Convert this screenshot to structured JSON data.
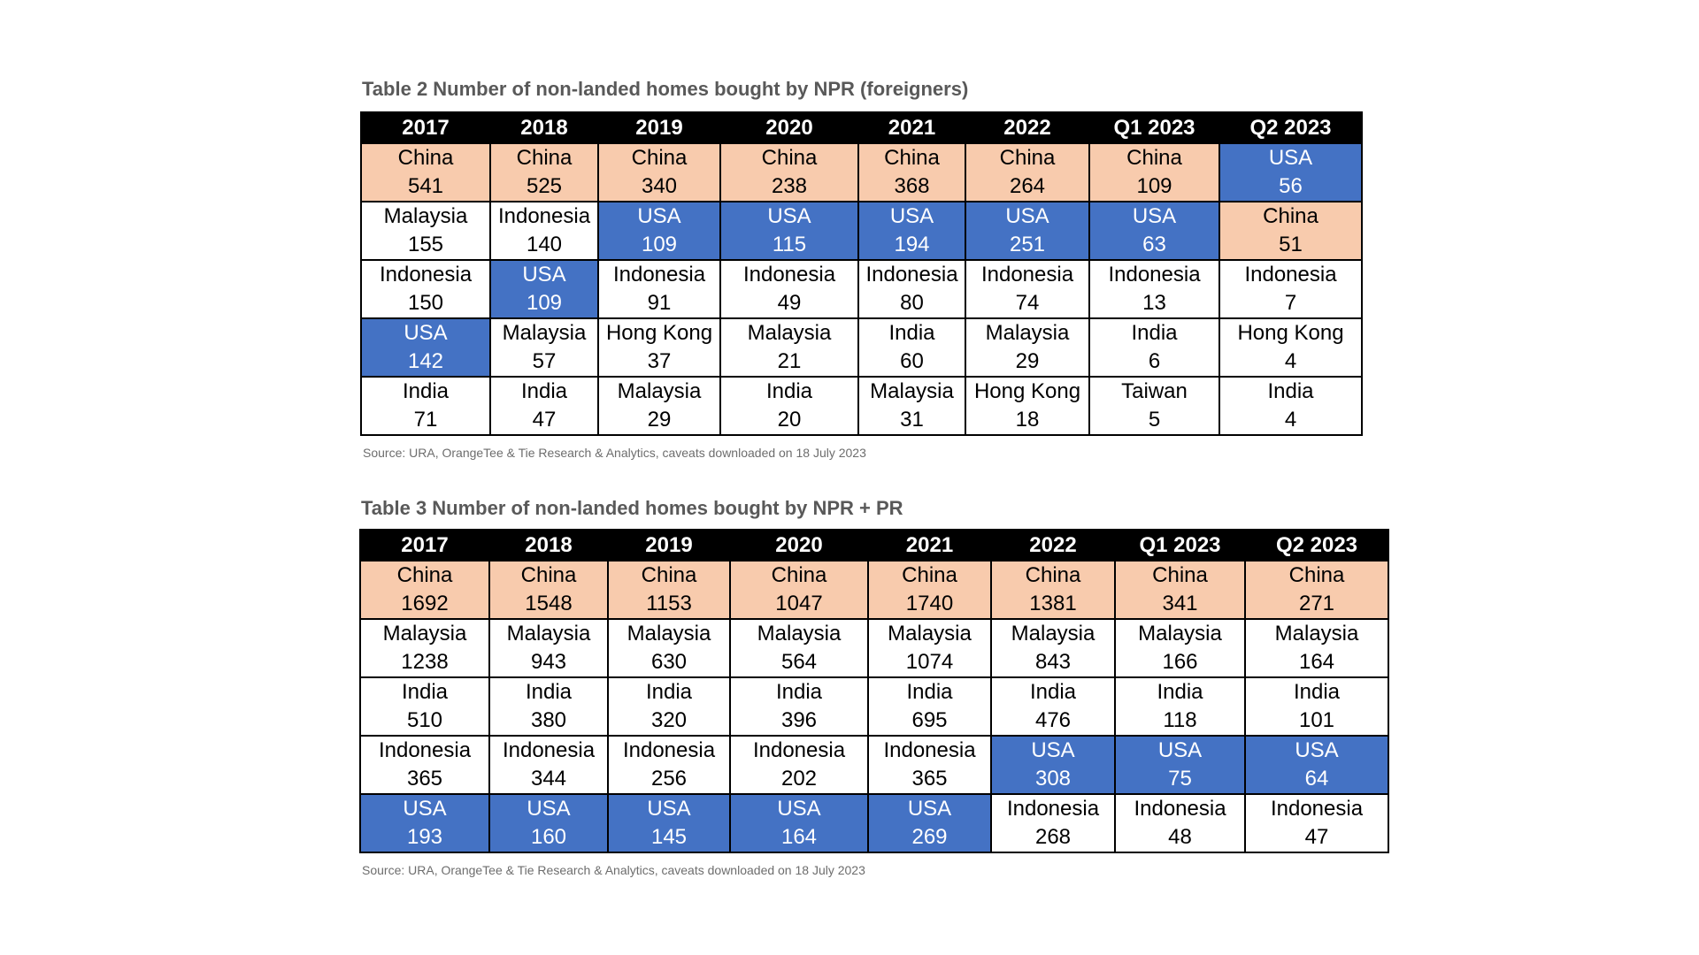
{
  "colors": {
    "china_fill": "#f8cbad",
    "usa_fill": "#4472c4",
    "header_fill": "#000000",
    "title_text": "#595959",
    "source_text": "#6d6d6d"
  },
  "tables": [
    {
      "title": "Table 2 Number of non-landed homes bought by NPR (foreigners)",
      "source": "Source: URA, OrangeTee & Tie Research & Analytics, caveats downloaded on 18 July 2023",
      "columns": [
        "2017",
        "2018",
        "2019",
        "2020",
        "2021",
        "2022",
        "Q1 2023",
        "Q2 2023"
      ],
      "rows": [
        [
          {
            "country": "China",
            "count": "541"
          },
          {
            "country": "China",
            "count": "525"
          },
          {
            "country": "China",
            "count": "340"
          },
          {
            "country": "China",
            "count": "238"
          },
          {
            "country": "China",
            "count": "368"
          },
          {
            "country": "China",
            "count": "264"
          },
          {
            "country": "China",
            "count": "109"
          },
          {
            "country": "USA",
            "count": "56"
          }
        ],
        [
          {
            "country": "Malaysia",
            "count": "155"
          },
          {
            "country": "Indonesia",
            "count": "140"
          },
          {
            "country": "USA",
            "count": "109"
          },
          {
            "country": "USA",
            "count": "115"
          },
          {
            "country": "USA",
            "count": "194"
          },
          {
            "country": "USA",
            "count": "251"
          },
          {
            "country": "USA",
            "count": "63"
          },
          {
            "country": "China",
            "count": "51"
          }
        ],
        [
          {
            "country": "Indonesia",
            "count": "150"
          },
          {
            "country": "USA",
            "count": "109"
          },
          {
            "country": "Indonesia",
            "count": "91"
          },
          {
            "country": "Indonesia",
            "count": "49"
          },
          {
            "country": "Indonesia",
            "count": "80"
          },
          {
            "country": "Indonesia",
            "count": "74"
          },
          {
            "country": "Indonesia",
            "count": "13"
          },
          {
            "country": "Indonesia",
            "count": "7"
          }
        ],
        [
          {
            "country": "USA",
            "count": "142"
          },
          {
            "country": "Malaysia",
            "count": "57"
          },
          {
            "country": "Hong Kong",
            "count": "37"
          },
          {
            "country": "Malaysia",
            "count": "21"
          },
          {
            "country": "India",
            "count": "60"
          },
          {
            "country": "Malaysia",
            "count": "29"
          },
          {
            "country": "India",
            "count": "6"
          },
          {
            "country": "Hong Kong",
            "count": "4"
          }
        ],
        [
          {
            "country": "India",
            "count": "71"
          },
          {
            "country": "India",
            "count": "47"
          },
          {
            "country": "Malaysia",
            "count": "29"
          },
          {
            "country": "India",
            "count": "20"
          },
          {
            "country": "Malaysia",
            "count": "31"
          },
          {
            "country": "Hong Kong",
            "count": "18"
          },
          {
            "country": "Taiwan",
            "count": "5"
          },
          {
            "country": "India",
            "count": "4"
          }
        ]
      ]
    },
    {
      "title": "Table 3 Number of non-landed homes bought by NPR + PR",
      "source": "Source: URA, OrangeTee & Tie Research & Analytics, caveats downloaded on 18 July 2023",
      "columns": [
        "2017",
        "2018",
        "2019",
        "2020",
        "2021",
        "2022",
        "Q1 2023",
        "Q2 2023"
      ],
      "rows": [
        [
          {
            "country": "China",
            "count": "1692"
          },
          {
            "country": "China",
            "count": "1548"
          },
          {
            "country": "China",
            "count": "1153"
          },
          {
            "country": "China",
            "count": "1047"
          },
          {
            "country": "China",
            "count": "1740"
          },
          {
            "country": "China",
            "count": "1381"
          },
          {
            "country": "China",
            "count": "341"
          },
          {
            "country": "China",
            "count": "271"
          }
        ],
        [
          {
            "country": "Malaysia",
            "count": "1238"
          },
          {
            "country": "Malaysia",
            "count": "943"
          },
          {
            "country": "Malaysia",
            "count": "630"
          },
          {
            "country": "Malaysia",
            "count": "564"
          },
          {
            "country": "Malaysia",
            "count": "1074"
          },
          {
            "country": "Malaysia",
            "count": "843"
          },
          {
            "country": "Malaysia",
            "count": "166"
          },
          {
            "country": "Malaysia",
            "count": "164"
          }
        ],
        [
          {
            "country": "India",
            "count": "510"
          },
          {
            "country": "India",
            "count": "380"
          },
          {
            "country": "India",
            "count": "320"
          },
          {
            "country": "India",
            "count": "396"
          },
          {
            "country": "India",
            "count": "695"
          },
          {
            "country": "India",
            "count": "476"
          },
          {
            "country": "India",
            "count": "118"
          },
          {
            "country": "India",
            "count": "101"
          }
        ],
        [
          {
            "country": "Indonesia",
            "count": "365"
          },
          {
            "country": "Indonesia",
            "count": "344"
          },
          {
            "country": "Indonesia",
            "count": "256"
          },
          {
            "country": "Indonesia",
            "count": "202"
          },
          {
            "country": "Indonesia",
            "count": "365"
          },
          {
            "country": "USA",
            "count": "308"
          },
          {
            "country": "USA",
            "count": "75"
          },
          {
            "country": "USA",
            "count": "64"
          }
        ],
        [
          {
            "country": "USA",
            "count": "193"
          },
          {
            "country": "USA",
            "count": "160"
          },
          {
            "country": "USA",
            "count": "145"
          },
          {
            "country": "USA",
            "count": "164"
          },
          {
            "country": "USA",
            "count": "269"
          },
          {
            "country": "Indonesia",
            "count": "268"
          },
          {
            "country": "Indonesia",
            "count": "48"
          },
          {
            "country": "Indonesia",
            "count": "47"
          }
        ]
      ]
    }
  ]
}
